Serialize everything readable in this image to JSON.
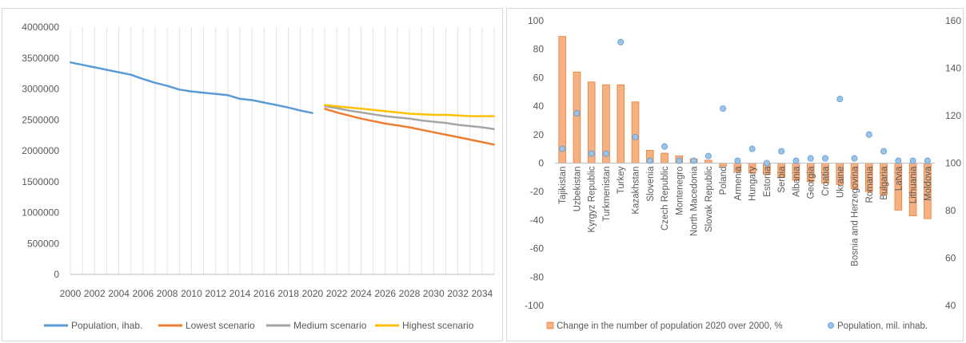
{
  "chart_data": [
    {
      "type": "line",
      "title": "",
      "xlabel": "",
      "ylabel": "",
      "ylim": [
        0,
        4000000
      ],
      "yticks": [
        0,
        500000,
        1000000,
        1500000,
        2000000,
        2500000,
        3000000,
        3500000,
        4000000
      ],
      "xlim": [
        2000,
        2035
      ],
      "xticks": [
        2000,
        2002,
        2004,
        2006,
        2008,
        2010,
        2012,
        2014,
        2016,
        2018,
        2020,
        2022,
        2024,
        2026,
        2028,
        2030,
        2032,
        2034
      ],
      "grid": "vertical",
      "legend": "bottom",
      "series": [
        {
          "name": "Population, ihab.",
          "color": "#5b9bd5",
          "x": [
            2000,
            2001,
            2002,
            2003,
            2004,
            2005,
            2006,
            2007,
            2008,
            2009,
            2010,
            2011,
            2012,
            2013,
            2014,
            2015,
            2016,
            2017,
            2018,
            2019,
            2020
          ],
          "y": [
            3430000,
            3390000,
            3350000,
            3310000,
            3270000,
            3230000,
            3160000,
            3100000,
            3050000,
            2990000,
            2960000,
            2940000,
            2920000,
            2900000,
            2840000,
            2820000,
            2780000,
            2740000,
            2700000,
            2650000,
            2610000
          ]
        },
        {
          "name": "Lowest scenario",
          "color": "#ed7d31",
          "x": [
            2021,
            2022,
            2023,
            2024,
            2025,
            2026,
            2027,
            2028,
            2029,
            2030,
            2031,
            2032,
            2033,
            2034,
            2035
          ],
          "y": [
            2680000,
            2620000,
            2570000,
            2520000,
            2480000,
            2440000,
            2410000,
            2380000,
            2340000,
            2300000,
            2260000,
            2220000,
            2180000,
            2140000,
            2100000
          ]
        },
        {
          "name": "Medium scenario",
          "color": "#a5a5a5",
          "x": [
            2021,
            2022,
            2023,
            2024,
            2025,
            2026,
            2027,
            2028,
            2029,
            2030,
            2031,
            2032,
            2033,
            2034,
            2035
          ],
          "y": [
            2720000,
            2690000,
            2650000,
            2620000,
            2590000,
            2560000,
            2540000,
            2520000,
            2490000,
            2470000,
            2450000,
            2420000,
            2400000,
            2380000,
            2350000
          ]
        },
        {
          "name": "Highest scenario",
          "color": "#ffc000",
          "x": [
            2021,
            2022,
            2023,
            2024,
            2025,
            2026,
            2027,
            2028,
            2029,
            2030,
            2031,
            2032,
            2033,
            2034,
            2035
          ],
          "y": [
            2740000,
            2720000,
            2700000,
            2680000,
            2660000,
            2640000,
            2620000,
            2600000,
            2590000,
            2580000,
            2580000,
            2570000,
            2560000,
            2560000,
            2560000
          ]
        }
      ]
    },
    {
      "type": "bar",
      "title": "",
      "xlabel": "",
      "ylabel": "",
      "ylim": [
        -100,
        100
      ],
      "yticks": [
        -100,
        -80,
        -60,
        -40,
        -20,
        0,
        20,
        40,
        60,
        80,
        100
      ],
      "y2lim": [
        40,
        160
      ],
      "y2ticks": [
        40,
        60,
        80,
        100,
        120,
        140,
        160
      ],
      "legend": "bottom",
      "categories": [
        "Tajikistan",
        "Uzbekistan",
        "Kyrgyz Republic",
        "Turkmenistan",
        "Turkey",
        "Kazakhstan",
        "Slovenia",
        "Czech Republic",
        "Montenegro",
        "North Macedonia",
        "Slovak Republic",
        "Poland",
        "Armenia",
        "Hungary",
        "Estonia",
        "Serbia",
        "Albania",
        "Georgia",
        "Croatia",
        "Ukraine",
        "Bosnia and Herzegovina",
        "Romania",
        "Bulgaria",
        "Latvia",
        "Lithuania",
        "Moldova"
      ],
      "series": [
        {
          "name": "Change in the number of population 2020 over 2000, %",
          "type": "bar",
          "axis": "left",
          "color": "#f4b183",
          "values": [
            89,
            64,
            57,
            55,
            55,
            43,
            9,
            7,
            5,
            3,
            2,
            -2,
            -6,
            -7,
            -8,
            -10,
            -12,
            -13,
            -14,
            -15,
            -18,
            -20,
            -22,
            -33,
            -37,
            -39
          ]
        },
        {
          "name": "Population, mil. inhab.",
          "type": "scatter",
          "axis": "right",
          "color": "#9dc3e6",
          "values": [
            106,
            121,
            104,
            104,
            151,
            111,
            101,
            107,
            101,
            101,
            103,
            123,
            101,
            106,
            100,
            105,
            101,
            102,
            102,
            127,
            102,
            112,
            105,
            101,
            101,
            101
          ]
        }
      ]
    }
  ]
}
